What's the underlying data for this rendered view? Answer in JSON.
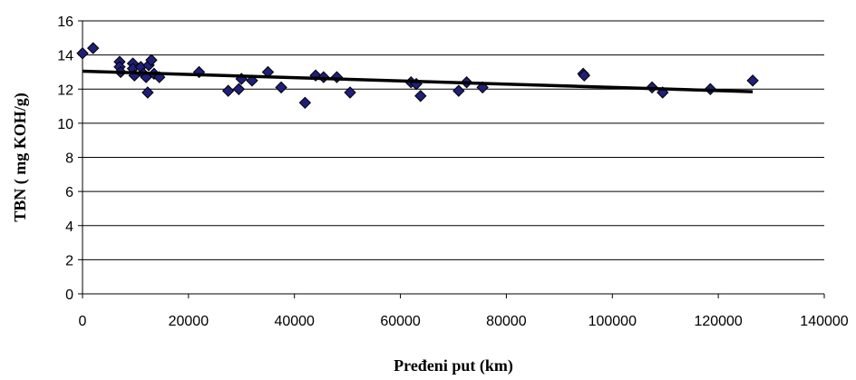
{
  "chart_data": {
    "type": "scatter",
    "title": "",
    "xlabel": "Pređeni put (km)",
    "ylabel": "TBN ( mg KOH/g)",
    "xlim": [
      0,
      140000
    ],
    "ylim": [
      0,
      16
    ],
    "x_ticks": [
      0,
      20000,
      40000,
      60000,
      80000,
      100000,
      120000,
      140000
    ],
    "y_ticks": [
      0,
      2,
      4,
      6,
      8,
      10,
      12,
      14,
      16
    ],
    "grid": "horizontal",
    "legend": "none",
    "series": [
      {
        "marker": "diamond",
        "color": "#1f1f7a",
        "points": [
          [
            0,
            14.1
          ],
          [
            2000,
            14.4
          ],
          [
            7000,
            13.6
          ],
          [
            7000,
            13.3
          ],
          [
            7200,
            13.0
          ],
          [
            9500,
            13.5
          ],
          [
            9500,
            13.2
          ],
          [
            9800,
            12.8
          ],
          [
            11000,
            13.3
          ],
          [
            11500,
            12.9
          ],
          [
            12000,
            12.7
          ],
          [
            12300,
            11.8
          ],
          [
            12500,
            13.4
          ],
          [
            13000,
            13.7
          ],
          [
            13500,
            12.9
          ],
          [
            14500,
            12.7
          ],
          [
            22000,
            13.0
          ],
          [
            27500,
            11.9
          ],
          [
            29500,
            12.0
          ],
          [
            30000,
            12.6
          ],
          [
            32000,
            12.5
          ],
          [
            35000,
            13.0
          ],
          [
            37500,
            12.1
          ],
          [
            42000,
            11.2
          ],
          [
            44000,
            12.8
          ],
          [
            45500,
            12.7
          ],
          [
            48000,
            12.7
          ],
          [
            50500,
            11.8
          ],
          [
            62000,
            12.4
          ],
          [
            63000,
            12.3
          ],
          [
            63800,
            11.6
          ],
          [
            71000,
            11.9
          ],
          [
            72500,
            12.4
          ],
          [
            75500,
            12.1
          ],
          [
            94500,
            12.9
          ],
          [
            94700,
            12.8
          ],
          [
            107500,
            12.1
          ],
          [
            109500,
            11.8
          ],
          [
            118500,
            12.0
          ],
          [
            126500,
            12.5
          ]
        ]
      }
    ],
    "trendline": {
      "type": "linear",
      "x": [
        0,
        126500
      ],
      "y": [
        13.05,
        11.85
      ],
      "color": "#000000"
    }
  }
}
